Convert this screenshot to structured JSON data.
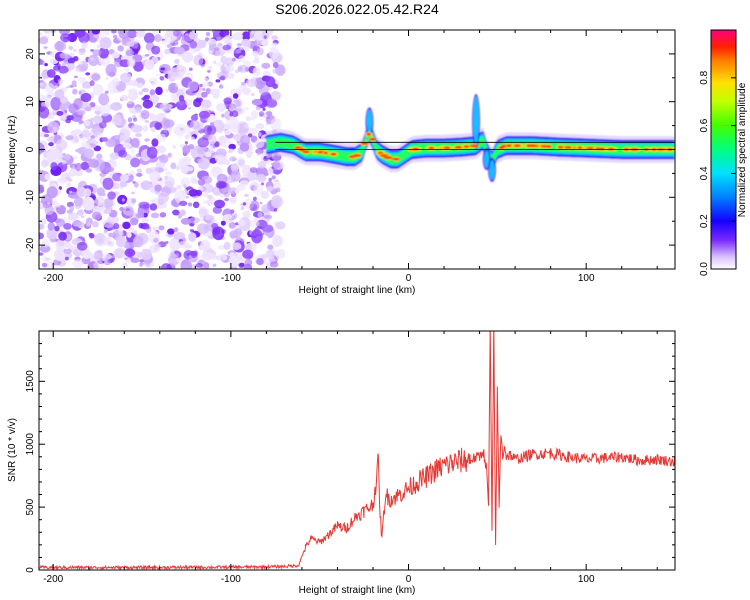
{
  "page": {
    "title": "S206.2026.022.05.42.R24"
  },
  "chart_data": [
    {
      "type": "heatmap",
      "xlabel": "Height of straight line (km)",
      "ylabel": "Frequency (Hz)",
      "xlim": [
        -208,
        150
      ],
      "ylim": [
        -25,
        25
      ],
      "x_ticks": [
        -200,
        -100,
        0,
        100
      ],
      "x_tick_labels": [
        "-200",
        "-100",
        "0",
        "100"
      ],
      "y_ticks": [
        -20,
        -10,
        0,
        10,
        20
      ],
      "y_tick_labels": [
        "-20",
        "-10",
        "0",
        "10",
        "20"
      ],
      "noise_region": {
        "x_range": [
          -208,
          -72
        ],
        "y_range": [
          -25,
          25
        ]
      },
      "ridge": {
        "points": [
          [
            -80,
            1.0
          ],
          [
            -72,
            1.5
          ],
          [
            -65,
            1.0
          ],
          [
            -58,
            -0.5
          ],
          [
            -50,
            -0.5
          ],
          [
            -42,
            -1.0
          ],
          [
            -35,
            -1.5
          ],
          [
            -30,
            -1.5
          ],
          [
            -26,
            -0.5
          ],
          [
            -24,
            2.0
          ],
          [
            -22,
            3.5
          ],
          [
            -20,
            2.0
          ],
          [
            -18,
            0.0
          ],
          [
            -15,
            -1.0
          ],
          [
            -10,
            -2.0
          ],
          [
            -6,
            -2.0
          ],
          [
            -2,
            -1.0
          ],
          [
            2,
            0.0
          ],
          [
            10,
            0.3
          ],
          [
            20,
            0.3
          ],
          [
            30,
            0.5
          ],
          [
            38,
            0.8
          ],
          [
            42,
            2.0
          ],
          [
            44,
            -0.5
          ],
          [
            47,
            -2.5
          ],
          [
            50,
            0.0
          ],
          [
            55,
            0.8
          ],
          [
            70,
            0.8
          ],
          [
            85,
            0.5
          ],
          [
            100,
            0.3
          ],
          [
            120,
            0.0
          ],
          [
            150,
            0.0
          ]
        ]
      },
      "reference_line_y": [
        0,
        1.5
      ],
      "colorbar": {
        "label": "Normalized spectral amplitude",
        "range": [
          0,
          1
        ],
        "ticks": [
          0.0,
          0.2,
          0.4,
          0.6,
          0.8
        ],
        "tick_labels": [
          "0.0",
          "0.2",
          "0.4",
          "0.6",
          "0.8"
        ]
      }
    },
    {
      "type": "line",
      "xlabel": "Height of straight line (km)",
      "ylabel": "SNR (10 * v/v)",
      "xlim": [
        -208,
        150
      ],
      "ylim": [
        0,
        1900
      ],
      "x_ticks": [
        -200,
        -100,
        0,
        100
      ],
      "x_tick_labels": [
        "-200",
        "-100",
        "0",
        "100"
      ],
      "y_ticks": [
        0,
        500,
        1000,
        1500
      ],
      "y_tick_labels": [
        "0",
        "500",
        "1000",
        "1500"
      ],
      "color": "#e53935",
      "series": [
        {
          "x": [
            -208,
            -150,
            -100,
            -80,
            -70,
            -62,
            -58,
            -55,
            -50,
            -45,
            -40,
            -35,
            -30,
            -25,
            -20,
            -17,
            -16,
            -15,
            -13,
            -10,
            -5,
            0,
            5,
            10,
            15,
            20,
            25,
            30,
            35,
            40,
            42,
            44,
            45,
            46,
            47,
            48,
            49,
            50,
            51,
            52,
            53,
            54,
            55,
            57,
            60,
            70,
            80,
            90,
            100,
            110,
            120,
            130,
            140,
            150
          ],
          "values": [
            20,
            20,
            22,
            25,
            28,
            35,
            180,
            250,
            220,
            280,
            350,
            330,
            420,
            470,
            520,
            850,
            450,
            250,
            600,
            560,
            600,
            650,
            700,
            740,
            790,
            830,
            850,
            870,
            880,
            900,
            950,
            800,
            500,
            1900,
            300,
            1900,
            200,
            1400,
            500,
            1100,
            900,
            1000,
            900,
            920,
            880,
            920,
            930,
            900,
            880,
            890,
            900,
            870,
            880,
            860
          ]
        }
      ]
    }
  ]
}
